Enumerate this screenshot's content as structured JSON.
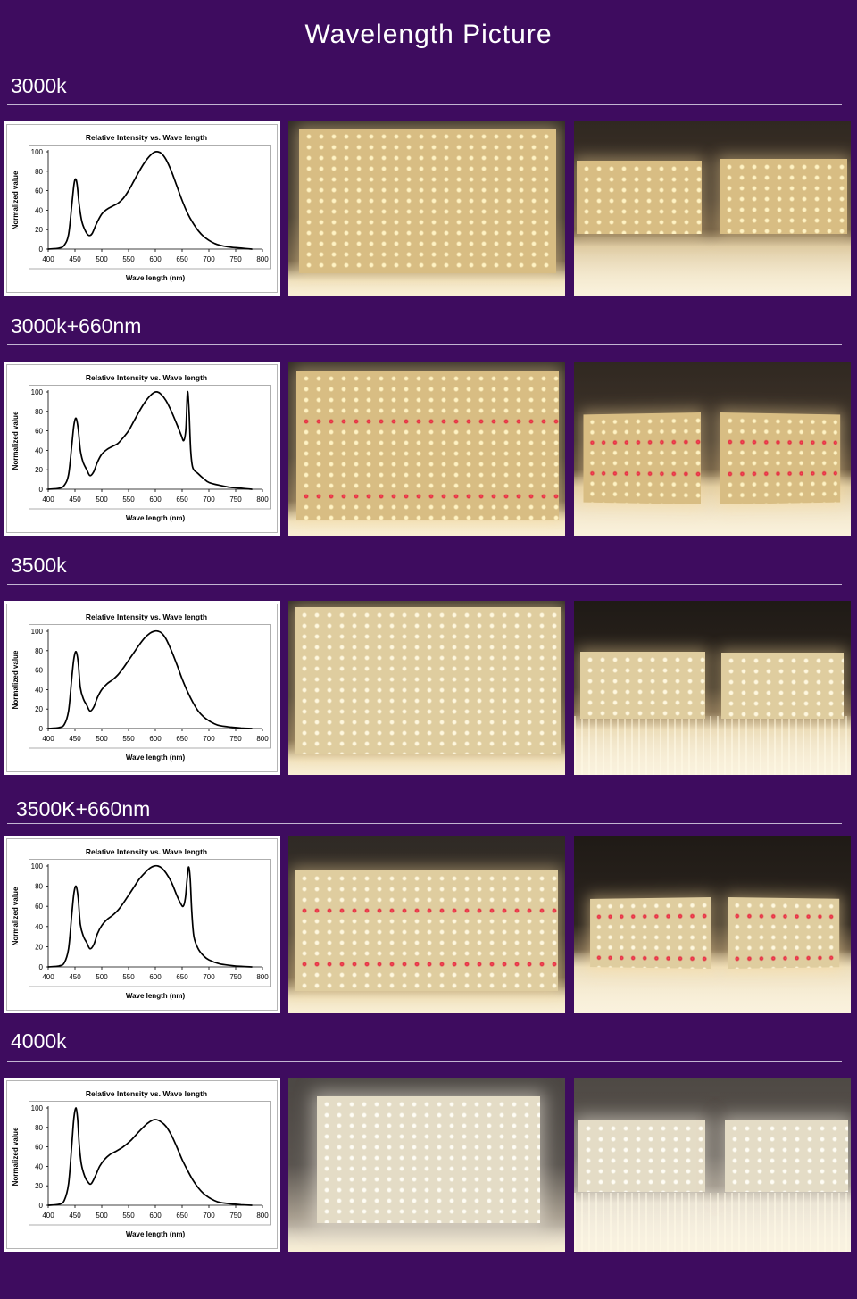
{
  "title": "Wavelength Picture",
  "sections": [
    {
      "label": "3000k"
    },
    {
      "label": "3000k+660nm"
    },
    {
      "label": "3500k"
    },
    {
      "label": "3500K+660nm"
    },
    {
      "label": "4000k"
    }
  ],
  "colors": {
    "page_background": "#3e0c5f",
    "heading_text": "#ffffff",
    "divider": "#c3b5d2",
    "curve": "#000000",
    "red_led": "#e3253b"
  },
  "chart_data": [
    {
      "type": "line",
      "title": "Relative Intensity vs. Wave length",
      "xlabel": "Wave length (nm)",
      "ylabel": "Normalized value",
      "xlim": [
        400,
        800
      ],
      "ylim": [
        0,
        100
      ],
      "xticks": [
        400,
        450,
        500,
        550,
        600,
        650,
        700,
        750,
        800
      ],
      "yticks": [
        0,
        20,
        40,
        60,
        80,
        100
      ],
      "grid": false,
      "legend": "none",
      "series": [
        {
          "x": [
            400,
            420,
            430,
            438,
            444,
            448,
            451,
            454,
            458,
            463,
            470,
            476,
            482,
            490,
            500,
            510,
            520,
            530,
            540,
            550,
            560,
            570,
            580,
            590,
            598,
            605,
            612,
            620,
            630,
            640,
            650,
            660,
            670,
            680,
            690,
            700,
            710,
            720,
            740,
            760,
            780
          ],
          "y": [
            0,
            1,
            4,
            15,
            45,
            66,
            72,
            66,
            45,
            28,
            18,
            14,
            16,
            26,
            36,
            41,
            44,
            47,
            52,
            60,
            70,
            80,
            89,
            96,
            99.5,
            100,
            98,
            92,
            80,
            65,
            50,
            37,
            27,
            19,
            13,
            9,
            6,
            4,
            2,
            1,
            0
          ]
        }
      ]
    },
    {
      "type": "line",
      "title": "Relative Intensity vs. Wave length",
      "xlabel": "Wave length (nm)",
      "ylabel": "Normalized value",
      "xlim": [
        400,
        800
      ],
      "ylim": [
        0,
        100
      ],
      "xticks": [
        400,
        450,
        500,
        550,
        600,
        650,
        700,
        750,
        800
      ],
      "yticks": [
        0,
        20,
        40,
        60,
        80,
        100
      ],
      "grid": false,
      "legend": "none",
      "series": [
        {
          "x": [
            400,
            420,
            430,
            438,
            444,
            448,
            452,
            456,
            460,
            465,
            472,
            478,
            485,
            492,
            500,
            510,
            520,
            530,
            540,
            550,
            560,
            570,
            580,
            590,
            598,
            604,
            610,
            620,
            630,
            640,
            648,
            653,
            657,
            660,
            663,
            666,
            670,
            680,
            690,
            700,
            720,
            740,
            760,
            780
          ],
          "y": [
            0,
            1,
            4,
            15,
            45,
            66,
            73,
            62,
            40,
            28,
            20,
            14,
            18,
            28,
            36,
            41,
            44,
            47,
            53,
            60,
            70,
            80,
            89,
            96,
            99.5,
            100,
            98,
            91,
            80,
            67,
            56,
            50,
            62,
            100,
            80,
            40,
            22,
            16,
            11,
            7,
            4,
            2,
            1,
            0
          ]
        }
      ]
    },
    {
      "type": "line",
      "title": "Relative Intensity vs. Wave length",
      "xlabel": "Wave length (nm)",
      "ylabel": "Normalized value",
      "xlim": [
        400,
        800
      ],
      "ylim": [
        0,
        100
      ],
      "xticks": [
        400,
        450,
        500,
        550,
        600,
        650,
        700,
        750,
        800
      ],
      "yticks": [
        0,
        20,
        40,
        60,
        80,
        100
      ],
      "grid": false,
      "legend": "none",
      "series": [
        {
          "x": [
            400,
            420,
            430,
            438,
            444,
            448,
            452,
            456,
            460,
            466,
            472,
            478,
            485,
            492,
            500,
            510,
            520,
            530,
            540,
            550,
            560,
            570,
            580,
            590,
            598,
            605,
            612,
            620,
            630,
            640,
            650,
            660,
            670,
            680,
            690,
            700,
            710,
            720,
            740,
            760,
            780
          ],
          "y": [
            0,
            1,
            4,
            18,
            52,
            72,
            79,
            68,
            42,
            30,
            24,
            18,
            22,
            32,
            40,
            46,
            50,
            55,
            62,
            70,
            78,
            86,
            93,
            98,
            100,
            100,
            98,
            92,
            80,
            66,
            51,
            38,
            27,
            18,
            12,
            8,
            5,
            3,
            1.5,
            0.5,
            0
          ]
        }
      ]
    },
    {
      "type": "line",
      "title": "Relative Intensity vs. Wave length",
      "xlabel": "Wave length (nm)",
      "ylabel": "Normalized value",
      "xlim": [
        400,
        800
      ],
      "ylim": [
        0,
        100
      ],
      "xticks": [
        400,
        450,
        500,
        550,
        600,
        650,
        700,
        750,
        800
      ],
      "yticks": [
        0,
        20,
        40,
        60,
        80,
        100
      ],
      "grid": false,
      "legend": "none",
      "series": [
        {
          "x": [
            400,
            420,
            430,
            438,
            444,
            448,
            452,
            456,
            460,
            466,
            472,
            478,
            485,
            492,
            500,
            510,
            520,
            530,
            540,
            550,
            560,
            570,
            580,
            590,
            598,
            605,
            612,
            620,
            630,
            640,
            647,
            652,
            656,
            659,
            662,
            665,
            668,
            672,
            680,
            690,
            700,
            720,
            740,
            760,
            780
          ],
          "y": [
            0,
            1,
            4,
            18,
            52,
            73,
            80,
            68,
            42,
            30,
            24,
            18,
            22,
            33,
            41,
            47,
            51,
            56,
            63,
            71,
            79,
            87,
            93,
            98,
            100,
            100,
            98,
            93,
            84,
            71,
            63,
            60,
            68,
            85,
            99,
            88,
            55,
            30,
            18,
            11,
            7,
            3,
            1.5,
            0.5,
            0
          ]
        }
      ]
    },
    {
      "type": "line",
      "title": "Relative Intensity vs. Wave length",
      "xlabel": "Wave length (nm)",
      "ylabel": "Normalized value",
      "xlim": [
        400,
        800
      ],
      "ylim": [
        0,
        100
      ],
      "xticks": [
        400,
        450,
        500,
        550,
        600,
        650,
        700,
        750,
        800
      ],
      "yticks": [
        0,
        20,
        40,
        60,
        80,
        100
      ],
      "grid": false,
      "legend": "none",
      "series": [
        {
          "x": [
            400,
            420,
            430,
            438,
            444,
            448,
            452,
            455,
            458,
            462,
            468,
            474,
            480,
            488,
            496,
            505,
            515,
            525,
            540,
            555,
            570,
            585,
            595,
            602,
            610,
            620,
            630,
            640,
            650,
            660,
            670,
            680,
            690,
            700,
            710,
            720,
            740,
            760,
            780
          ],
          "y": [
            0,
            1,
            5,
            22,
            62,
            90,
            100,
            88,
            62,
            42,
            30,
            24,
            22,
            30,
            40,
            47,
            52,
            55,
            60,
            67,
            76,
            84,
            87.5,
            88,
            86,
            81,
            72,
            60,
            47,
            36,
            26,
            18,
            12,
            8,
            5,
            3,
            1.5,
            0.5,
            0
          ]
        }
      ]
    }
  ]
}
